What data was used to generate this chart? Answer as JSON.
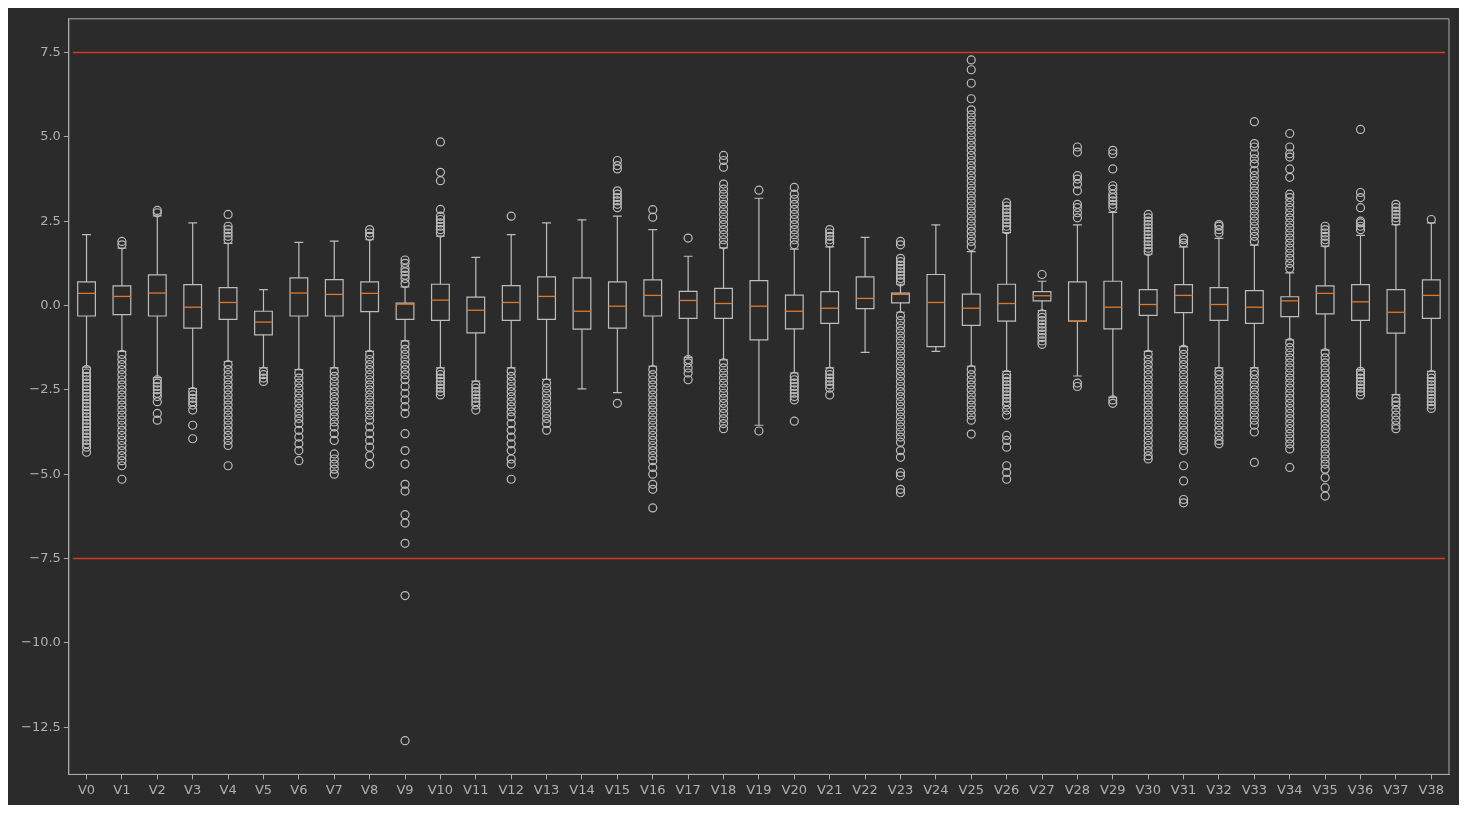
{
  "chart_data": {
    "type": "box",
    "categories": [
      "V0",
      "V1",
      "V2",
      "V3",
      "V4",
      "V5",
      "V6",
      "V7",
      "V8",
      "V9",
      "V10",
      "V11",
      "V12",
      "V13",
      "V14",
      "V15",
      "V16",
      "V17",
      "V18",
      "V19",
      "V20",
      "V21",
      "V22",
      "V23",
      "V24",
      "V25",
      "V26",
      "V27",
      "V28",
      "V29",
      "V30",
      "V31",
      "V32",
      "V33",
      "V34",
      "V35",
      "V36",
      "V37",
      "V38"
    ],
    "color": "#bdbdbd",
    "boxes": [
      {
        "low": -1.83,
        "q1": -0.31,
        "median": 0.36,
        "q3": 0.7,
        "high": 2.1,
        "outliers": [
          -1.9,
          -2.0,
          -2.1,
          -2.2,
          -2.3,
          -2.4,
          -2.5,
          -2.6,
          -2.7,
          -2.8,
          -2.9,
          -3.0,
          -3.1,
          -3.2,
          -3.3,
          -3.4,
          -3.5,
          -3.6,
          -3.7,
          -3.8,
          -3.9,
          -4.0,
          -4.1,
          -4.2,
          -4.35
        ]
      },
      {
        "low": -1.36,
        "q1": -0.27,
        "median": 0.27,
        "q3": 0.58,
        "high": 1.7,
        "outliers": [
          1.8,
          1.9,
          -1.45,
          -1.6,
          -1.75,
          -1.9,
          -2.05,
          -2.2,
          -2.35,
          -2.5,
          -2.65,
          -2.8,
          -2.95,
          -3.1,
          -3.25,
          -3.4,
          -3.55,
          -3.7,
          -3.85,
          -4.0,
          -4.15,
          -4.3,
          -4.45,
          -4.6,
          -4.75,
          -5.15
        ]
      },
      {
        "low": -2.14,
        "q1": -0.31,
        "median": 0.37,
        "q3": 0.91,
        "high": 2.66,
        "outliers": [
          2.75,
          2.82,
          -2.2,
          -2.3,
          -2.4,
          -2.5,
          -2.6,
          -2.7,
          -2.85,
          -3.2,
          -3.4
        ]
      },
      {
        "low": -2.46,
        "q1": -0.67,
        "median": -0.05,
        "q3": 0.62,
        "high": 2.45,
        "outliers": [
          -2.55,
          -2.65,
          -2.75,
          -2.85,
          -2.95,
          -3.1,
          -3.55,
          -3.95
        ]
      },
      {
        "low": -1.66,
        "q1": -0.41,
        "median": 0.09,
        "q3": 0.53,
        "high": 1.84,
        "outliers": [
          1.95,
          2.05,
          2.15,
          2.25,
          2.35,
          2.7,
          -1.75,
          -1.9,
          -2.05,
          -2.2,
          -2.35,
          -2.5,
          -2.65,
          -2.8,
          -2.95,
          -3.1,
          -3.25,
          -3.4,
          -3.55,
          -3.7,
          -3.85,
          -4.0,
          -4.15,
          -4.75
        ]
      },
      {
        "low": -1.85,
        "q1": -0.87,
        "median": -0.49,
        "q3": -0.17,
        "high": 0.47,
        "outliers": [
          -1.95,
          -2.05,
          -2.15,
          -2.25
        ]
      },
      {
        "low": -1.9,
        "q1": -0.31,
        "median": 0.37,
        "q3": 0.82,
        "high": 1.87,
        "outliers": [
          -2.0,
          -2.15,
          -2.3,
          -2.45,
          -2.6,
          -2.75,
          -2.9,
          -3.05,
          -3.2,
          -3.35,
          -3.5,
          -3.7,
          -3.9,
          -4.1,
          -4.3,
          -4.6
        ]
      },
      {
        "low": -1.85,
        "q1": -0.31,
        "median": 0.33,
        "q3": 0.77,
        "high": 1.91,
        "outliers": [
          -1.95,
          -2.1,
          -2.25,
          -2.4,
          -2.55,
          -2.7,
          -2.85,
          -3.0,
          -3.15,
          -3.3,
          -3.45,
          -3.6,
          -3.8,
          -4.0,
          -4.4,
          -4.55,
          -4.7,
          -4.85,
          -5.0
        ]
      },
      {
        "low": -1.36,
        "q1": -0.18,
        "median": 0.36,
        "q3": 0.7,
        "high": 1.95,
        "outliers": [
          2.05,
          2.15,
          2.25,
          -1.45,
          -1.6,
          -1.75,
          -1.9,
          -2.05,
          -2.2,
          -2.35,
          -2.5,
          -2.65,
          -2.8,
          -2.95,
          -3.1,
          -3.25,
          -3.4,
          -3.6,
          -3.8,
          -4.0,
          -4.2,
          -4.45,
          -4.7
        ]
      },
      {
        "low": -1.05,
        "q1": -0.41,
        "median": 0.04,
        "q3": 0.07,
        "high": 0.55,
        "outliers": [
          0.65,
          0.8,
          0.9,
          1.0,
          1.1,
          1.25,
          1.35,
          -1.15,
          -1.3,
          -1.45,
          -1.6,
          -1.75,
          -1.9,
          -2.05,
          -2.2,
          -2.4,
          -2.6,
          -2.8,
          -3.0,
          -3.2,
          -3.8,
          -4.3,
          -4.7,
          -5.3,
          -5.5,
          -6.2,
          -6.45,
          -7.05,
          -8.6,
          -12.9
        ]
      },
      {
        "low": -1.85,
        "q1": -0.44,
        "median": 0.16,
        "q3": 0.63,
        "high": 2.06,
        "outliers": [
          2.15,
          2.25,
          2.35,
          2.45,
          2.55,
          2.65,
          2.85,
          3.7,
          3.95,
          4.85,
          -1.95,
          -2.05,
          -2.15,
          -2.25,
          -2.35,
          -2.45,
          -2.55,
          -2.65
        ]
      },
      {
        "low": -2.24,
        "q1": -0.81,
        "median": -0.14,
        "q3": 0.25,
        "high": 1.43,
        "outliers": [
          -2.35,
          -2.45,
          -2.55,
          -2.65,
          -2.75,
          -2.85,
          -2.95,
          -3.1
        ]
      },
      {
        "low": -1.85,
        "q1": -0.44,
        "median": 0.09,
        "q3": 0.59,
        "high": 2.1,
        "outliers": [
          2.65,
          -1.95,
          -2.1,
          -2.25,
          -2.4,
          -2.55,
          -2.7,
          -2.85,
          -3.0,
          -3.15,
          -3.3,
          -3.5,
          -3.7,
          -3.9,
          -4.1,
          -4.3,
          -4.55,
          -4.7,
          -5.15
        ]
      },
      {
        "low": -2.19,
        "q1": -0.41,
        "median": 0.27,
        "q3": 0.85,
        "high": 2.45,
        "outliers": [
          -2.3,
          -2.45,
          -2.6,
          -2.75,
          -2.9,
          -3.05,
          -3.2,
          -3.35,
          -3.5,
          -3.7
        ]
      },
      {
        "low": -2.47,
        "q1": -0.7,
        "median": -0.17,
        "q3": 0.82,
        "high": 2.54
      },
      {
        "low": -2.58,
        "q1": -0.67,
        "median": -0.02,
        "q3": 0.7,
        "high": 2.65,
        "outliers": [
          2.9,
          3.0,
          3.1,
          3.2,
          3.3,
          3.4,
          4.05,
          4.15,
          4.3,
          -2.9
        ]
      },
      {
        "low": -1.8,
        "q1": -0.31,
        "median": 0.3,
        "q3": 0.76,
        "high": 2.25,
        "outliers": [
          2.62,
          2.84,
          -1.9,
          -2.05,
          -2.2,
          -2.35,
          -2.5,
          -2.65,
          -2.8,
          -2.95,
          -3.1,
          -3.25,
          -3.4,
          -3.55,
          -3.7,
          -3.85,
          -4.0,
          -4.15,
          -4.3,
          -4.45,
          -4.6,
          -4.8,
          -5.0,
          -5.3,
          -5.45,
          -6.0
        ]
      },
      {
        "low": -1.54,
        "q1": -0.38,
        "median": 0.15,
        "q3": 0.42,
        "high": 1.46,
        "outliers": [
          2.0,
          -1.6,
          -1.7,
          -1.85,
          -2.0,
          -2.2
        ]
      },
      {
        "low": -1.61,
        "q1": -0.38,
        "median": 0.06,
        "q3": 0.51,
        "high": 1.71,
        "outliers": [
          1.8,
          1.95,
          2.1,
          2.25,
          2.4,
          2.55,
          2.7,
          2.85,
          3.0,
          3.15,
          3.3,
          3.45,
          3.6,
          4.1,
          4.3,
          4.45,
          -1.7,
          -1.85,
          -2.0,
          -2.15,
          -2.3,
          -2.45,
          -2.6,
          -2.75,
          -2.9,
          -3.05,
          -3.2,
          -3.35,
          -3.5,
          -3.65
        ]
      },
      {
        "low": -3.55,
        "q1": -1.02,
        "median": -0.02,
        "q3": 0.74,
        "high": 3.18,
        "outliers": [
          3.42,
          -3.72
        ]
      },
      {
        "low": -2.0,
        "q1": -0.69,
        "median": -0.17,
        "q3": 0.31,
        "high": 1.67,
        "outliers": [
          1.8,
          1.95,
          2.1,
          2.25,
          2.4,
          2.55,
          2.7,
          2.85,
          3.0,
          3.15,
          3.3,
          3.5,
          -2.1,
          -2.2,
          -2.3,
          -2.4,
          -2.5,
          -2.6,
          -2.7,
          -2.8,
          -3.43
        ]
      },
      {
        "low": -1.85,
        "q1": -0.53,
        "median": -0.08,
        "q3": 0.41,
        "high": 1.74,
        "outliers": [
          1.85,
          1.95,
          2.05,
          2.15,
          2.25,
          -1.95,
          -2.05,
          -2.15,
          -2.25,
          -2.35,
          -2.45,
          -2.65
        ]
      },
      {
        "low": -1.39,
        "q1": -0.09,
        "median": 0.21,
        "q3": 0.85,
        "high": 2.02
      },
      {
        "low": -0.2,
        "q1": 0.08,
        "median": 0.33,
        "q3": 0.37,
        "high": 0.63,
        "outliers": [
          0.7,
          0.8,
          0.9,
          1.0,
          1.1,
          1.2,
          1.3,
          1.4,
          1.8,
          1.9,
          -0.3,
          -0.45,
          -0.6,
          -0.75,
          -0.9,
          -1.05,
          -1.2,
          -1.35,
          -1.5,
          -1.65,
          -1.8,
          -1.95,
          -2.1,
          -2.25,
          -2.4,
          -2.55,
          -2.7,
          -2.85,
          -3.0,
          -3.15,
          -3.3,
          -3.45,
          -3.6,
          -3.75,
          -3.9,
          -4.05,
          -4.3,
          -4.5,
          -4.95,
          -5.05,
          -5.45,
          -5.55
        ]
      },
      {
        "low": -1.36,
        "q1": -1.22,
        "median": 0.09,
        "q3": 0.92,
        "high": 2.39
      },
      {
        "low": -1.8,
        "q1": -0.59,
        "median": -0.08,
        "q3": 0.34,
        "high": 1.6,
        "outliers": [
          1.75,
          1.9,
          2.05,
          2.2,
          2.35,
          2.5,
          2.65,
          2.8,
          2.95,
          3.1,
          3.25,
          3.4,
          3.55,
          3.7,
          3.85,
          4.0,
          4.15,
          4.3,
          4.45,
          4.6,
          4.75,
          4.9,
          5.05,
          5.2,
          5.35,
          5.5,
          5.65,
          5.8,
          6.13,
          6.59,
          6.99,
          7.28,
          -1.9,
          -2.05,
          -2.2,
          -2.35,
          -2.5,
          -2.65,
          -2.8,
          -2.95,
          -3.1,
          -3.25,
          -3.4,
          -3.81
        ]
      },
      {
        "low": -1.95,
        "q1": -0.46,
        "median": 0.06,
        "q3": 0.63,
        "high": 2.16,
        "outliers": [
          2.25,
          2.35,
          2.45,
          2.55,
          2.65,
          2.75,
          2.85,
          2.95,
          3.05,
          -2.05,
          -2.15,
          -2.25,
          -2.35,
          -2.45,
          -2.55,
          -2.65,
          -2.75,
          -2.85,
          -2.95,
          -3.1,
          -3.25,
          -3.85,
          -4.0,
          -4.2,
          -4.75,
          -4.95,
          -5.15
        ]
      },
      {
        "low": -0.15,
        "q1": 0.14,
        "median": 0.29,
        "q3": 0.41,
        "high": 0.72,
        "outliers": [
          0.92,
          -0.25,
          -0.35,
          -0.45,
          -0.55,
          -0.65,
          -0.75,
          -0.85,
          -0.95,
          -1.05,
          -1.15
        ]
      },
      {
        "low": -2.09,
        "q1": -0.46,
        "median": -0.46,
        "q3": 0.7,
        "high": 2.39,
        "outliers": [
          2.6,
          2.75,
          2.9,
          3.0,
          3.4,
          3.6,
          3.75,
          3.85,
          4.55,
          4.7,
          -2.3,
          -2.4
        ]
      },
      {
        "low": -2.72,
        "q1": -0.69,
        "median": -0.05,
        "q3": 0.72,
        "high": 2.76,
        "outliers": [
          2.9,
          3.0,
          3.1,
          3.2,
          3.3,
          3.45,
          3.55,
          4.05,
          4.5,
          4.6,
          -2.8,
          -2.9
        ]
      },
      {
        "low": -1.36,
        "q1": -0.29,
        "median": 0.03,
        "q3": 0.47,
        "high": 1.52,
        "outliers": [
          1.6,
          1.7,
          1.8,
          1.9,
          2.0,
          2.1,
          2.2,
          2.3,
          2.4,
          2.5,
          2.6,
          2.7,
          -1.45,
          -1.6,
          -1.75,
          -1.9,
          -2.05,
          -2.2,
          -2.35,
          -2.5,
          -2.65,
          -2.8,
          -2.95,
          -3.1,
          -3.25,
          -3.4,
          -3.55,
          -3.7,
          -3.85,
          -4.0,
          -4.15,
          -4.3,
          -4.45,
          -4.55
        ]
      },
      {
        "low": -1.22,
        "q1": -0.21,
        "median": 0.3,
        "q3": 0.62,
        "high": 1.74,
        "outliers": [
          1.85,
          1.95,
          2.0,
          -1.3,
          -1.45,
          -1.6,
          -1.75,
          -1.9,
          -2.05,
          -2.2,
          -2.35,
          -2.5,
          -2.65,
          -2.8,
          -2.95,
          -3.1,
          -3.25,
          -3.4,
          -3.55,
          -3.7,
          -3.85,
          -4.0,
          -4.15,
          -4.3,
          -4.75,
          -5.2,
          -5.75,
          -5.85
        ]
      },
      {
        "low": -1.85,
        "q1": -0.44,
        "median": 0.03,
        "q3": 0.53,
        "high": 1.99,
        "outliers": [
          2.15,
          2.25,
          2.35,
          2.4,
          -1.95,
          -2.05,
          -2.2,
          -2.35,
          -2.5,
          -2.65,
          -2.8,
          -2.95,
          -3.1,
          -3.25,
          -3.4,
          -3.55,
          -3.7,
          -3.85,
          -4.0,
          -4.1
        ]
      },
      {
        "low": -1.85,
        "q1": -0.53,
        "median": -0.05,
        "q3": 0.44,
        "high": 1.79,
        "outliers": [
          1.9,
          2.05,
          2.2,
          2.35,
          2.5,
          2.65,
          2.8,
          2.95,
          3.1,
          3.25,
          3.4,
          3.55,
          3.7,
          3.85,
          4.0,
          4.2,
          4.35,
          4.5,
          4.7,
          4.8,
          5.45,
          -1.95,
          -2.05,
          -2.2,
          -2.35,
          -2.5,
          -2.65,
          -2.8,
          -2.95,
          -3.1,
          -3.25,
          -3.4,
          -3.55,
          -3.75,
          -4.65
        ]
      },
      {
        "low": -1.02,
        "q1": -0.33,
        "median": 0.14,
        "q3": 0.26,
        "high": 0.97,
        "outliers": [
          1.1,
          1.25,
          1.4,
          1.55,
          1.7,
          1.85,
          2.0,
          2.15,
          2.3,
          2.45,
          2.6,
          2.75,
          2.9,
          3.05,
          3.2,
          3.3,
          3.8,
          4.05,
          4.4,
          4.5,
          4.7,
          5.1,
          -1.1,
          -1.25,
          -1.4,
          -1.55,
          -1.7,
          -1.85,
          -2.0,
          -2.15,
          -2.3,
          -2.45,
          -2.6,
          -2.75,
          -2.9,
          -3.05,
          -3.2,
          -3.35,
          -3.5,
          -3.65,
          -3.8,
          -3.95,
          -4.1,
          -4.25,
          -4.8
        ]
      },
      {
        "low": -1.32,
        "q1": -0.25,
        "median": 0.36,
        "q3": 0.58,
        "high": 1.76,
        "outliers": [
          1.85,
          1.95,
          2.05,
          2.15,
          2.25,
          2.35,
          -1.4,
          -1.55,
          -1.7,
          -1.85,
          -2.0,
          -2.15,
          -2.3,
          -2.45,
          -2.6,
          -2.75,
          -2.9,
          -3.05,
          -3.2,
          -3.35,
          -3.5,
          -3.65,
          -3.8,
          -3.95,
          -4.1,
          -4.25,
          -4.4,
          -4.55,
          -4.7,
          -4.85,
          -5.1,
          -5.4,
          -5.65
        ]
      },
      {
        "low": -1.9,
        "q1": -0.44,
        "median": 0.11,
        "q3": 0.62,
        "high": 2.08,
        "outliers": [
          2.25,
          2.35,
          2.45,
          2.5,
          2.9,
          3.2,
          3.35,
          5.22,
          -1.95,
          -2.05,
          -2.15,
          -2.25,
          -2.35,
          -2.45,
          -2.55,
          -2.65
        ]
      },
      {
        "low": -2.64,
        "q1": -0.82,
        "median": -0.2,
        "q3": 0.47,
        "high": 2.4,
        "outliers": [
          2.5,
          2.6,
          2.7,
          2.8,
          2.9,
          3.0,
          -2.75,
          -2.85,
          -2.95,
          -3.1,
          -3.25,
          -3.4,
          -3.55,
          -3.65
        ]
      },
      {
        "low": -1.95,
        "q1": -0.38,
        "median": 0.3,
        "q3": 0.76,
        "high": 2.45,
        "outliers": [
          2.55,
          -2.05,
          -2.15,
          -2.25,
          -2.35,
          -2.45,
          -2.55,
          -2.65,
          -2.75,
          -2.85,
          -2.95,
          -3.05
        ]
      }
    ],
    "ylim": [
      -13.9,
      8.5
    ],
    "yticks": [
      {
        "value": -12.5,
        "label": "−12.5"
      },
      {
        "value": -10,
        "label": "−10.0"
      },
      {
        "value": -7.5,
        "label": "−7.5"
      },
      {
        "value": -5,
        "label": "−5.0"
      },
      {
        "value": -2.5,
        "label": "−2.5"
      },
      {
        "value": 0,
        "label": "0.0"
      },
      {
        "value": 2.5,
        "label": "2.5"
      },
      {
        "value": 5,
        "label": "5.0"
      },
      {
        "value": 7.5,
        "label": "7.5"
      }
    ],
    "ref_lines": [
      {
        "axis": "y",
        "value": 7.5,
        "color": "#d0392b"
      },
      {
        "axis": "y",
        "value": -7.5,
        "color": "#d0392b"
      }
    ],
    "grid": false,
    "legend": false
  }
}
